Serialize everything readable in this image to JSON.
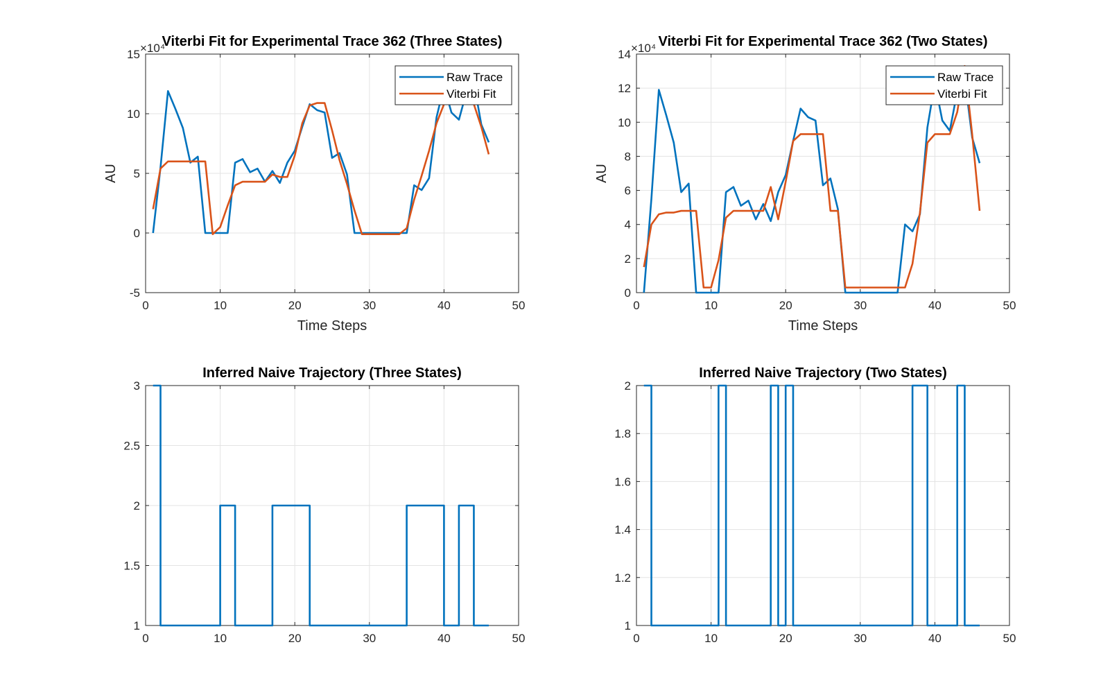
{
  "colors": {
    "raw": "#0072BD",
    "fit": "#D95319",
    "grid": "#e3e3e3",
    "axis": "#262626"
  },
  "chart_data": [
    {
      "type": "line",
      "title": "Viterbi Fit for Experimental Trace 362 (Three States)",
      "xlabel": "Time Steps",
      "ylabel": "AU",
      "exponent_label": "×10⁴",
      "xlim": [
        0,
        50
      ],
      "ylim": [
        -5,
        15
      ],
      "xticks": [
        0,
        10,
        20,
        30,
        40,
        50
      ],
      "yticks": [
        -5,
        0,
        5,
        10,
        15
      ],
      "grid": true,
      "legend_position": "top-right",
      "x": [
        1,
        2,
        3,
        4,
        5,
        6,
        7,
        8,
        9,
        10,
        11,
        12,
        13,
        14,
        15,
        16,
        17,
        18,
        19,
        20,
        21,
        22,
        23,
        24,
        25,
        26,
        27,
        28,
        29,
        30,
        31,
        32,
        33,
        34,
        35,
        36,
        37,
        38,
        39,
        40,
        41,
        42,
        43,
        44,
        45,
        46
      ],
      "series": [
        {
          "name": "Raw Trace",
          "color": "#0072BD",
          "values": [
            0,
            5.5,
            11.9,
            10.4,
            8.8,
            5.9,
            6.4,
            0,
            0,
            0,
            0,
            5.9,
            6.2,
            5.1,
            5.4,
            4.3,
            5.2,
            4.2,
            5.9,
            6.9,
            8.9,
            10.8,
            10.3,
            10.1,
            6.3,
            6.7,
            4.9,
            0,
            0,
            0,
            0,
            0,
            0,
            0,
            0,
            4,
            3.6,
            4.6,
            9.7,
            12.3,
            10.1,
            9.5,
            11.8,
            12.6,
            9.1,
            7.6
          ]
        },
        {
          "name": "Viterbi Fit",
          "color": "#D95319",
          "values": [
            2,
            5.4,
            6,
            6,
            6,
            6,
            6,
            6,
            -0.1,
            0.5,
            2.3,
            4,
            4.3,
            4.3,
            4.3,
            4.3,
            4.9,
            4.7,
            4.7,
            6.5,
            9.2,
            10.7,
            10.9,
            10.9,
            8.6,
            6.1,
            4.1,
            1.9,
            -0.1,
            -0.1,
            -0.1,
            -0.1,
            -0.1,
            -0.1,
            0.4,
            2.8,
            4.8,
            6.9,
            9.2,
            10.8,
            10.8,
            10.8,
            10.8,
            10.8,
            8.9,
            6.6
          ]
        }
      ]
    },
    {
      "type": "line",
      "title": "Viterbi Fit for Experimental Trace  362 (Two States)",
      "xlabel": "Time Steps",
      "ylabel": "AU",
      "exponent_label": "×10⁴",
      "xlim": [
        0,
        50
      ],
      "ylim": [
        0,
        14
      ],
      "xticks": [
        0,
        10,
        20,
        30,
        40,
        50
      ],
      "yticks": [
        0,
        2,
        4,
        6,
        8,
        10,
        12,
        14
      ],
      "grid": true,
      "legend_position": "top-right",
      "x": [
        1,
        2,
        3,
        4,
        5,
        6,
        7,
        8,
        9,
        10,
        11,
        12,
        13,
        14,
        15,
        16,
        17,
        18,
        19,
        20,
        21,
        22,
        23,
        24,
        25,
        26,
        27,
        28,
        29,
        30,
        31,
        32,
        33,
        34,
        35,
        36,
        37,
        38,
        39,
        40,
        41,
        42,
        43,
        44,
        45,
        46
      ],
      "series": [
        {
          "name": "Raw Trace",
          "color": "#0072BD",
          "values": [
            0,
            5.5,
            11.9,
            10.4,
            8.8,
            5.9,
            6.4,
            0,
            0,
            0,
            0,
            5.9,
            6.2,
            5.1,
            5.4,
            4.3,
            5.2,
            4.2,
            5.9,
            6.9,
            8.9,
            10.8,
            10.3,
            10.1,
            6.3,
            6.7,
            4.9,
            0,
            0,
            0,
            0,
            0,
            0,
            0,
            0,
            4,
            3.6,
            4.6,
            9.7,
            12.3,
            10.1,
            9.5,
            11.8,
            12.6,
            9.1,
            7.6
          ]
        },
        {
          "name": "Viterbi Fit",
          "color": "#D95319",
          "values": [
            1.5,
            4,
            4.6,
            4.7,
            4.7,
            4.8,
            4.8,
            4.8,
            0.3,
            0.3,
            1.9,
            4.4,
            4.8,
            4.8,
            4.8,
            4.8,
            4.8,
            6.2,
            4.3,
            6.5,
            8.9,
            9.3,
            9.3,
            9.3,
            9.3,
            4.8,
            4.8,
            0.3,
            0.3,
            0.3,
            0.3,
            0.3,
            0.3,
            0.3,
            0.3,
            0.3,
            1.7,
            4.7,
            8.8,
            9.3,
            9.3,
            9.3,
            10.6,
            13.3,
            9.3,
            4.8
          ]
        }
      ]
    },
    {
      "type": "line",
      "title": "Inferred Naive Trajectory (Three States)",
      "xlabel": "",
      "ylabel": "",
      "xlim": [
        0,
        50
      ],
      "ylim": [
        1,
        3
      ],
      "xticks": [
        0,
        10,
        20,
        30,
        40,
        50
      ],
      "yticks": [
        1,
        1.5,
        2,
        2.5,
        3
      ],
      "grid": true,
      "step": true,
      "x": [
        1,
        2,
        3,
        4,
        5,
        6,
        7,
        8,
        9,
        10,
        11,
        12,
        13,
        14,
        15,
        16,
        17,
        18,
        19,
        20,
        21,
        22,
        23,
        24,
        25,
        26,
        27,
        28,
        29,
        30,
        31,
        32,
        33,
        34,
        35,
        36,
        37,
        38,
        39,
        40,
        41,
        42,
        43,
        44,
        45,
        46
      ],
      "series": [
        {
          "color": "#0072BD",
          "values": [
            3,
            1,
            1,
            1,
            1,
            1,
            1,
            1,
            1,
            2,
            2,
            1,
            1,
            1,
            1,
            1,
            2,
            2,
            2,
            2,
            2,
            1,
            1,
            1,
            1,
            1,
            1,
            1,
            1,
            1,
            1,
            1,
            1,
            1,
            2,
            2,
            2,
            2,
            2,
            1,
            1,
            2,
            2,
            1,
            1,
            1
          ]
        }
      ]
    },
    {
      "type": "line",
      "title": "Inferred Naive Trajectory (Two States)",
      "xlabel": "",
      "ylabel": "",
      "xlim": [
        0,
        50
      ],
      "ylim": [
        1,
        2
      ],
      "xticks": [
        0,
        10,
        20,
        30,
        40,
        50
      ],
      "yticks": [
        1,
        1.2,
        1.4,
        1.6,
        1.8,
        2
      ],
      "grid": true,
      "step": true,
      "x": [
        1,
        2,
        3,
        4,
        5,
        6,
        7,
        8,
        9,
        10,
        11,
        12,
        13,
        14,
        15,
        16,
        17,
        18,
        19,
        20,
        21,
        22,
        23,
        24,
        25,
        26,
        27,
        28,
        29,
        30,
        31,
        32,
        33,
        34,
        35,
        36,
        37,
        38,
        39,
        40,
        41,
        42,
        43,
        44,
        45,
        46
      ],
      "series": [
        {
          "color": "#0072BD",
          "values": [
            2,
            1,
            1,
            1,
            1,
            1,
            1,
            1,
            1,
            1,
            2,
            1,
            1,
            1,
            1,
            1,
            1,
            2,
            1,
            2,
            1,
            1,
            1,
            1,
            1,
            1,
            1,
            1,
            1,
            1,
            1,
            1,
            1,
            1,
            1,
            1,
            2,
            2,
            1,
            1,
            1,
            1,
            2,
            1,
            1,
            1
          ]
        }
      ]
    }
  ]
}
